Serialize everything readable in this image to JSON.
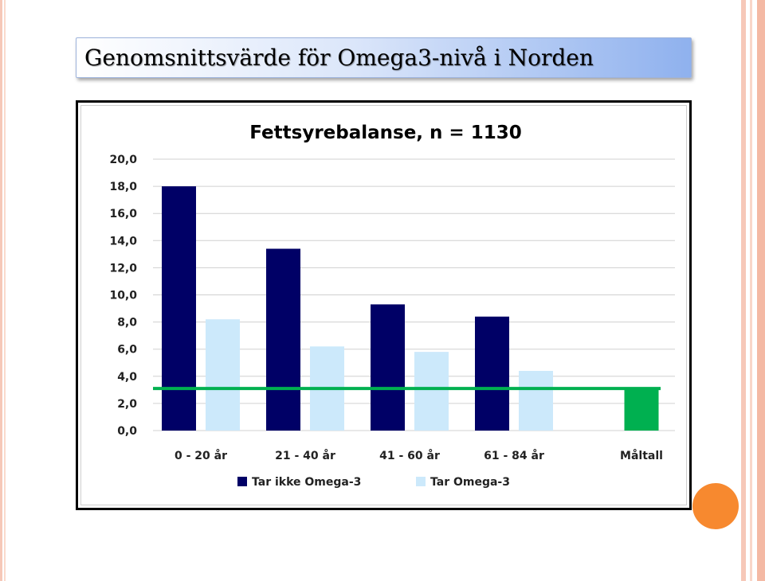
{
  "slide_title": "Genomsnittsvärde för Omega3-nivå i Norden",
  "colors": {
    "series_1": "#000066",
    "series_2": "#cce9fb",
    "target": "#00b050",
    "accent_dot": "#f7892f",
    "stripe": "#f6c8b8"
  },
  "chart_data": {
    "type": "bar",
    "title": "Fettsyrebalanse, n = 1130",
    "xlabel": "",
    "ylabel": "",
    "categories": [
      "0 - 20 år",
      "21 - 40 år",
      "41 - 60 år",
      "61 - 84 år",
      "Måltall"
    ],
    "series": [
      {
        "name": "Tar ikke Omega-3",
        "values": [
          18.0,
          13.4,
          9.3,
          8.4,
          null
        ]
      },
      {
        "name": "Tar Omega-3",
        "values": [
          8.2,
          6.2,
          5.8,
          4.4,
          null
        ]
      },
      {
        "name": "",
        "values": [
          null,
          null,
          null,
          null,
          3.1
        ]
      }
    ],
    "target_line": 3.1,
    "ylim": [
      0,
      20
    ],
    "yticks": [
      "0,0",
      "2,0",
      "4,0",
      "6,0",
      "8,0",
      "10,0",
      "12,0",
      "14,0",
      "16,0",
      "18,0",
      "20,0"
    ],
    "grid": true,
    "legend_position": "bottom"
  }
}
